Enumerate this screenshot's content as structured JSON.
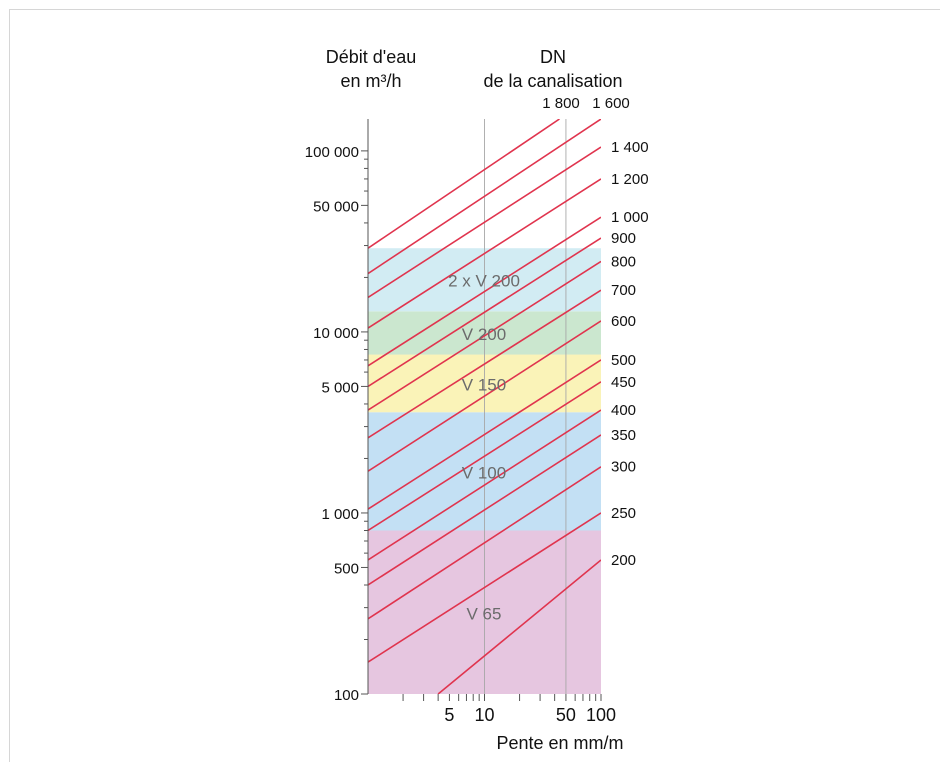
{
  "chart_data": {
    "type": "line",
    "y_title": [
      "Débit d'eau",
      "en m³/h"
    ],
    "dn_title": [
      "DN",
      "de la canalisation"
    ],
    "x_title": "Pente en mm/m",
    "x_scale": "log",
    "y_scale": "log",
    "xlim": [
      1,
      100
    ],
    "ylim": [
      100,
      150000
    ],
    "x_ticks": [
      5,
      10,
      50,
      100
    ],
    "y_ticks": [
      100,
      500,
      1000,
      5000,
      10000,
      50000,
      100000
    ],
    "y_tick_labels": [
      "100",
      "500",
      "1 000",
      "5 000",
      "10 000",
      "50 000",
      "100 000"
    ],
    "grid_x": [
      10,
      50
    ],
    "zones": [
      {
        "name": "V 65",
        "y0": 100,
        "y1": 800,
        "color": "#e6c6e0"
      },
      {
        "name": "V 100",
        "y0": 800,
        "y1": 3600,
        "color": "#c3e0f4"
      },
      {
        "name": "V 150",
        "y0": 3600,
        "y1": 7500,
        "color": "#faf3b8"
      },
      {
        "name": "V 200",
        "y0": 7500,
        "y1": 13000,
        "color": "#cbe7cf"
      },
      {
        "name": "2 x V 200",
        "y0": 13000,
        "y1": 29000,
        "color": "#d2ecf3"
      }
    ],
    "series_color": "#e0344e",
    "series": [
      {
        "dn": "200",
        "x": [
          4,
          100
        ],
        "y": [
          100,
          550
        ]
      },
      {
        "dn": "250",
        "x": [
          1,
          100
        ],
        "y": [
          150,
          1000
        ]
      },
      {
        "dn": "300",
        "x": [
          1,
          100
        ],
        "y": [
          260,
          1800
        ]
      },
      {
        "dn": "350",
        "x": [
          1,
          100
        ],
        "y": [
          400,
          2700
        ]
      },
      {
        "dn": "400",
        "x": [
          1,
          100
        ],
        "y": [
          550,
          3700
        ]
      },
      {
        "dn": "450",
        "x": [
          1,
          100
        ],
        "y": [
          800,
          5300
        ]
      },
      {
        "dn": "500",
        "x": [
          1,
          100
        ],
        "y": [
          1050,
          7000
        ]
      },
      {
        "dn": "600",
        "x": [
          1,
          100
        ],
        "y": [
          1700,
          11500
        ]
      },
      {
        "dn": "700",
        "x": [
          1,
          100
        ],
        "y": [
          2600,
          17000
        ]
      },
      {
        "dn": "800",
        "x": [
          1,
          100
        ],
        "y": [
          3700,
          24500
        ]
      },
      {
        "dn": "900",
        "x": [
          1,
          100
        ],
        "y": [
          5000,
          33000
        ]
      },
      {
        "dn": "1 000",
        "x": [
          1,
          100
        ],
        "y": [
          6500,
          43000
        ]
      },
      {
        "dn": "1 200",
        "x": [
          1,
          100
        ],
        "y": [
          10500,
          70000
        ]
      },
      {
        "dn": "1 400",
        "x": [
          1,
          100
        ],
        "y": [
          15500,
          105000
        ]
      },
      {
        "dn": "1 600",
        "x": [
          1,
          100
        ],
        "y": [
          21000,
          150000
        ]
      },
      {
        "dn": "1 800",
        "x": [
          1,
          44
        ],
        "y": [
          29000,
          150000
        ]
      }
    ]
  }
}
